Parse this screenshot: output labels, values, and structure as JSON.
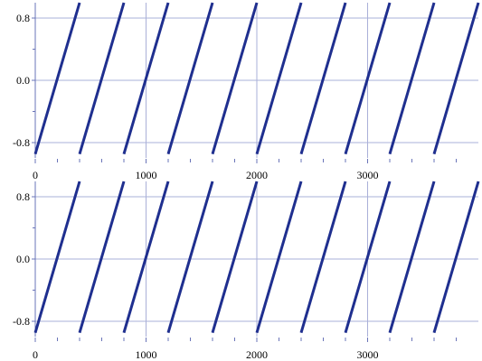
{
  "chart_data": [
    {
      "type": "line",
      "xlim": [
        0,
        4000
      ],
      "ylim": [
        -1.0,
        1.0
      ],
      "x_ticks": [
        0,
        1000,
        2000,
        3000
      ],
      "x_tick_labels": [
        "0",
        "1000",
        "2000",
        "3000"
      ],
      "x_minor_ticks": [
        200,
        400,
        600,
        800,
        1200,
        1400,
        1600,
        1800,
        2200,
        2400,
        2600,
        2800,
        3200,
        3400,
        3600,
        3800
      ],
      "y_ticks": [
        -0.8,
        0.0,
        0.8
      ],
      "y_tick_labels": [
        "-0.8",
        "0.0",
        "0.8"
      ],
      "y_minor_ticks": [
        -0.4,
        0.4
      ],
      "grid": true,
      "color": "#1f2f8f",
      "series": [
        {
          "x": [
            0,
            400,
            400,
            800,
            800,
            1200,
            1200,
            1600,
            1600,
            2000,
            2000,
            2400,
            2400,
            2800,
            2800,
            3200,
            3200,
            3600,
            3600,
            4000
          ],
          "y": [
            -0.95,
            1.0,
            -0.95,
            1.0,
            -0.95,
            1.0,
            -0.95,
            1.0,
            -0.95,
            1.0,
            -0.95,
            1.0,
            -0.95,
            1.0,
            -0.95,
            1.0,
            -0.95,
            1.0,
            -0.95,
            1.0
          ]
        }
      ]
    },
    {
      "type": "line",
      "xlim": [
        0,
        4000
      ],
      "ylim": [
        -1.0,
        1.0
      ],
      "x_ticks": [
        0,
        1000,
        2000,
        3000
      ],
      "x_tick_labels": [
        "0",
        "1000",
        "2000",
        "3000"
      ],
      "x_minor_ticks": [
        200,
        400,
        600,
        800,
        1200,
        1400,
        1600,
        1800,
        2200,
        2400,
        2600,
        2800,
        3200,
        3400,
        3600,
        3800
      ],
      "y_ticks": [
        -0.8,
        0.0,
        0.8
      ],
      "y_tick_labels": [
        "-0.8",
        "0.0",
        "0.8"
      ],
      "y_minor_ticks": [
        -0.4,
        0.4
      ],
      "grid": true,
      "color": "#1f2f8f",
      "series": [
        {
          "x": [
            0,
            400,
            400,
            800,
            800,
            1200,
            1200,
            1600,
            1600,
            2000,
            2000,
            2400,
            2400,
            2800,
            2800,
            3200,
            3200,
            3600,
            3600,
            4000
          ],
          "y": [
            -0.95,
            1.0,
            -0.95,
            1.0,
            -0.95,
            1.0,
            -0.95,
            1.0,
            -0.95,
            1.0,
            -0.95,
            1.0,
            -0.95,
            1.0,
            -0.95,
            1.0,
            -0.95,
            1.0,
            -0.95,
            1.0
          ]
        }
      ]
    }
  ]
}
